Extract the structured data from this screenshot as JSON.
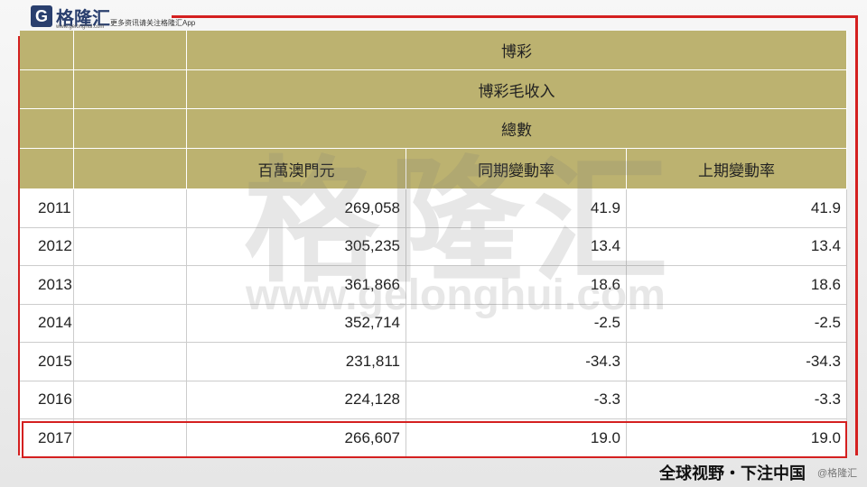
{
  "header": {
    "logo": "格隆汇",
    "logo_url": "www.gelonghui.com",
    "slogan": "更多资讯请关注格隆汇App"
  },
  "table": {
    "group": "博彩",
    "subgroup": "博彩毛收入",
    "total": "總數",
    "columns": [
      "百萬澳門元",
      "同期變動率",
      "上期變動率"
    ],
    "rows": [
      [
        "2011",
        "269,058",
        "41.9",
        "41.9"
      ],
      [
        "2012",
        "305,235",
        "13.4",
        "13.4"
      ],
      [
        "2013",
        "361,866",
        "18.6",
        "18.6"
      ],
      [
        "2014",
        "352,714",
        "-2.5",
        "-2.5"
      ],
      [
        "2015",
        "231,811",
        "-34.3",
        "-34.3"
      ],
      [
        "2016",
        "224,128",
        "-3.3",
        "-3.3"
      ],
      [
        "2017",
        "266,607",
        "19.0",
        "19.0"
      ]
    ]
  },
  "watermark": {
    "text": "格隆汇",
    "url": "www.gelonghui.com"
  },
  "footer": {
    "slogan": "全球视野・下注中国",
    "credit": "@格隆汇"
  }
}
